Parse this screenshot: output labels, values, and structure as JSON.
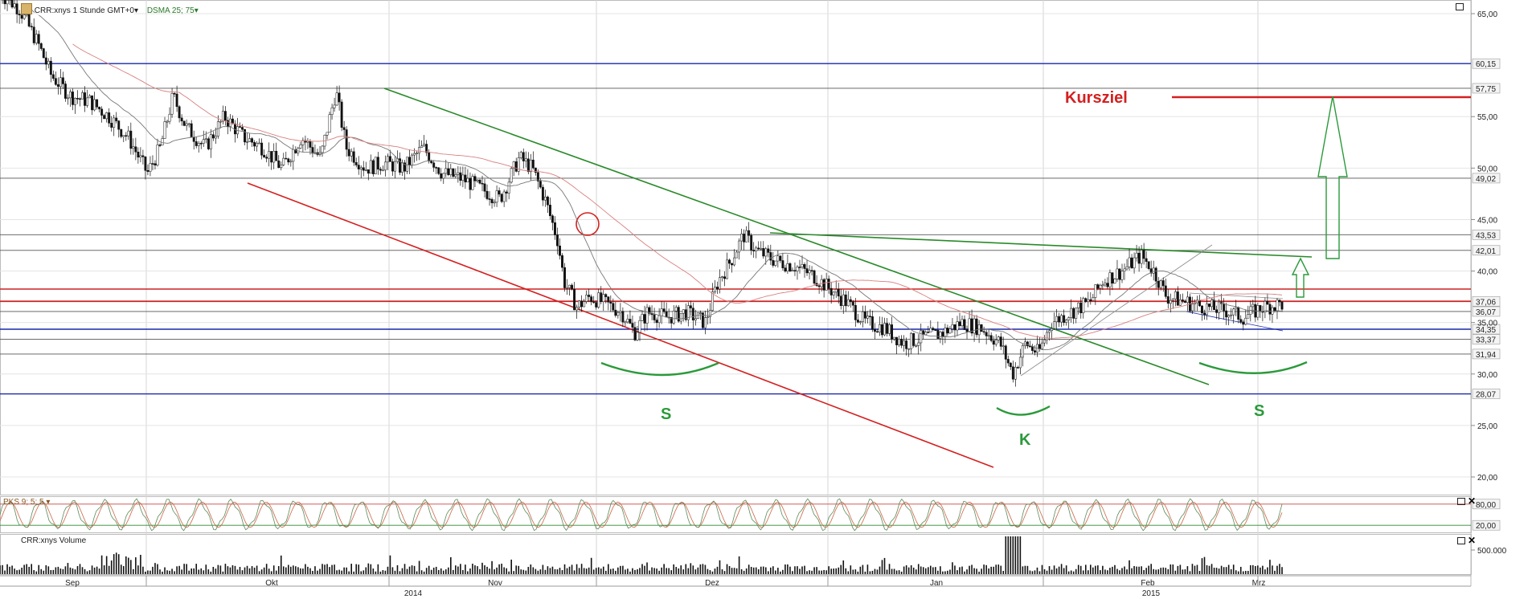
{
  "header": {
    "symbol": "CRR:xnys 1 Stunde GMT+0",
    "indicator": "DSMA 25; 75",
    "oscillator": "PKS 9; 5; 5",
    "volume_title": "CRR:xnys Volume"
  },
  "chart_data": {
    "type": "candlestick",
    "title": "",
    "price_axis_ticks": [
      "65,00",
      "55,00",
      "50,00",
      "45,00",
      "40,00",
      "35,00",
      "30,00",
      "25,00",
      "20,00"
    ],
    "price_range": [
      18.0,
      66.5
    ],
    "x_labels": [
      "Sep",
      "Okt",
      "2014",
      "Nov",
      "Dez",
      "Jan",
      "2015",
      "Feb",
      "Mrz"
    ],
    "horizontal_levels": [
      {
        "label": "60,15",
        "value": 60.15,
        "color": "#1a2aa8"
      },
      {
        "label": "57,75",
        "value": 57.75,
        "color": "#555555"
      },
      {
        "label": "49,02",
        "value": 49.02,
        "color": "#555555"
      },
      {
        "label": "43,53",
        "value": 43.53,
        "color": "#555555"
      },
      {
        "label": "42,01",
        "value": 42.01,
        "color": "#555555"
      },
      {
        "label": "37,06",
        "value": 37.06,
        "color": "#cc2222"
      },
      {
        "label": "36,07",
        "value": 36.07,
        "color": "#555555"
      },
      {
        "label": "34,35",
        "value": 34.35,
        "color": "#1a2aa8"
      },
      {
        "label": "33,37",
        "value": 33.37,
        "color": "#555555"
      },
      {
        "label": "31,94",
        "value": 31.94,
        "color": "#555555"
      },
      {
        "label": "28,07",
        "value": 28.07,
        "color": "#1a2aa8"
      }
    ],
    "annotations": {
      "target": "Kursziel",
      "shoulder_left": "S",
      "head": "K",
      "shoulder_right": "S"
    },
    "price_path": [
      [
        0,
        67
      ],
      [
        0.015,
        65.5
      ],
      [
        0.03,
        62
      ],
      [
        0.04,
        59
      ],
      [
        0.055,
        57
      ],
      [
        0.07,
        56.5
      ],
      [
        0.085,
        55
      ],
      [
        0.1,
        53
      ],
      [
        0.115,
        49.5
      ],
      [
        0.125,
        52
      ],
      [
        0.135,
        57
      ],
      [
        0.145,
        54
      ],
      [
        0.16,
        52
      ],
      [
        0.175,
        55
      ],
      [
        0.19,
        53
      ],
      [
        0.205,
        52
      ],
      [
        0.22,
        50
      ],
      [
        0.235,
        53
      ],
      [
        0.25,
        51
      ],
      [
        0.262,
        57.5
      ],
      [
        0.27,
        52
      ],
      [
        0.285,
        50
      ],
      [
        0.3,
        50.5
      ],
      [
        0.315,
        50
      ],
      [
        0.33,
        52
      ],
      [
        0.345,
        49.5
      ],
      [
        0.36,
        49
      ],
      [
        0.375,
        48
      ],
      [
        0.39,
        47
      ],
      [
        0.405,
        51
      ],
      [
        0.415,
        50
      ],
      [
        0.425,
        47
      ],
      [
        0.435,
        43
      ],
      [
        0.44,
        39
      ],
      [
        0.45,
        36.5
      ],
      [
        0.46,
        37.5
      ],
      [
        0.47,
        37
      ],
      [
        0.485,
        36
      ],
      [
        0.495,
        34
      ],
      [
        0.505,
        36
      ],
      [
        0.52,
        35.5
      ],
      [
        0.535,
        36
      ],
      [
        0.55,
        35
      ],
      [
        0.56,
        39
      ],
      [
        0.57,
        41
      ],
      [
        0.58,
        43.5
      ],
      [
        0.59,
        42
      ],
      [
        0.605,
        41
      ],
      [
        0.62,
        40.5
      ],
      [
        0.635,
        39.5
      ],
      [
        0.65,
        38
      ],
      [
        0.66,
        37
      ],
      [
        0.675,
        35
      ],
      [
        0.69,
        34.5
      ],
      [
        0.705,
        33
      ],
      [
        0.72,
        33.5
      ],
      [
        0.735,
        34
      ],
      [
        0.75,
        35
      ],
      [
        0.765,
        34.5
      ],
      [
        0.78,
        33
      ],
      [
        0.79,
        30
      ],
      [
        0.8,
        33
      ],
      [
        0.81,
        32
      ],
      [
        0.82,
        35
      ],
      [
        0.835,
        36
      ],
      [
        0.85,
        37
      ],
      [
        0.86,
        39
      ],
      [
        0.875,
        40
      ],
      [
        0.89,
        41.5
      ],
      [
        0.9,
        40
      ],
      [
        0.91,
        37.5
      ],
      [
        0.925,
        37
      ],
      [
        0.94,
        36.5
      ],
      [
        0.955,
        36.2
      ],
      [
        0.97,
        35.5
      ],
      [
        0.985,
        36.5
      ],
      [
        1.0,
        36.8
      ]
    ],
    "oscillator_levels": {
      "upper": "80,00",
      "lower": "20,00"
    },
    "volume_tick": "500.000"
  }
}
